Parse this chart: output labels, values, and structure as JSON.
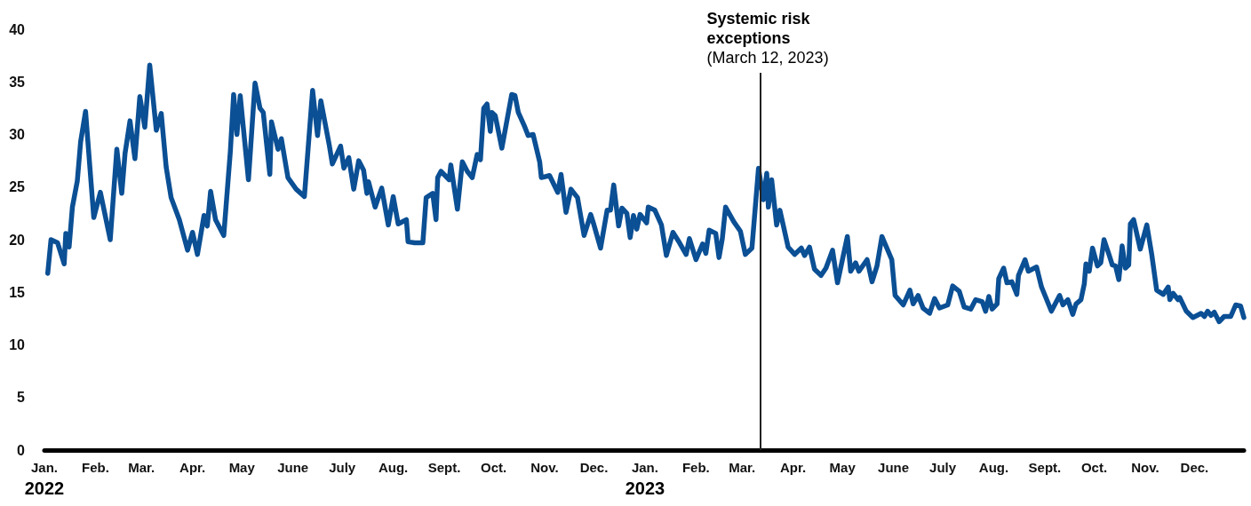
{
  "chart_data": {
    "type": "line",
    "x": [
      "2022-01-03",
      "2022-01-05",
      "2022-01-09",
      "2022-01-13",
      "2022-01-14",
      "2022-01-16",
      "2022-01-18",
      "2022-01-21",
      "2022-01-23",
      "2022-01-26",
      "2022-01-31",
      "2022-02-04",
      "2022-02-10",
      "2022-02-14",
      "2022-02-17",
      "2022-02-19",
      "2022-02-22",
      "2022-02-25",
      "2022-02-28",
      "2022-03-03",
      "2022-03-06",
      "2022-03-10",
      "2022-03-13",
      "2022-03-16",
      "2022-03-19",
      "2022-03-24",
      "2022-03-29",
      "2022-04-01",
      "2022-04-04",
      "2022-04-08",
      "2022-04-10",
      "2022-04-12",
      "2022-04-15",
      "2022-04-20",
      "2022-04-24",
      "2022-04-26",
      "2022-04-28",
      "2022-04-30",
      "2022-05-05",
      "2022-05-09",
      "2022-05-12",
      "2022-05-14",
      "2022-05-18",
      "2022-05-19",
      "2022-05-23",
      "2022-05-25",
      "2022-05-29",
      "2022-06-03",
      "2022-06-08",
      "2022-06-13",
      "2022-06-16",
      "2022-06-18",
      "2022-06-23",
      "2022-06-25",
      "2022-06-30",
      "2022-07-02",
      "2022-07-05",
      "2022-07-08",
      "2022-07-11",
      "2022-07-14",
      "2022-07-16",
      "2022-07-17",
      "2022-07-21",
      "2022-07-25",
      "2022-07-29",
      "2022-08-01",
      "2022-08-04",
      "2022-08-09",
      "2022-08-10",
      "2022-08-14",
      "2022-08-19",
      "2022-08-21",
      "2022-08-25",
      "2022-08-27",
      "2022-08-28",
      "2022-08-30",
      "2022-09-04",
      "2022-09-05",
      "2022-09-09",
      "2022-09-12",
      "2022-09-15",
      "2022-09-18",
      "2022-09-21",
      "2022-09-23",
      "2022-09-25",
      "2022-09-27",
      "2022-09-29",
      "2022-09-30",
      "2022-10-02",
      "2022-10-06",
      "2022-10-12",
      "2022-10-14",
      "2022-10-16",
      "2022-10-20",
      "2022-10-22",
      "2022-10-25",
      "2022-10-29",
      "2022-10-30",
      "2022-11-04",
      "2022-11-09",
      "2022-11-11",
      "2022-11-14",
      "2022-11-17",
      "2022-11-21",
      "2022-11-25",
      "2022-11-29",
      "2022-12-01",
      "2022-12-05",
      "2022-12-09",
      "2022-12-11",
      "2022-12-13",
      "2022-12-16",
      "2022-12-18",
      "2022-12-21",
      "2022-12-23",
      "2022-12-25",
      "2022-12-27",
      "2022-12-29",
      "2023-01-02",
      "2023-01-03",
      "2023-01-07",
      "2023-01-09",
      "2023-01-11",
      "2023-01-14",
      "2023-01-18",
      "2023-01-22",
      "2023-01-26",
      "2023-01-28",
      "2023-02-01",
      "2023-02-05",
      "2023-02-07",
      "2023-02-09",
      "2023-02-13",
      "2023-02-15",
      "2023-02-17",
      "2023-02-19",
      "2023-02-24",
      "2023-02-28",
      "2023-03-03",
      "2023-03-07",
      "2023-03-11",
      "2023-03-14",
      "2023-03-16",
      "2023-03-17",
      "2023-03-19",
      "2023-03-22",
      "2023-03-24",
      "2023-03-29",
      "2023-04-02",
      "2023-04-06",
      "2023-04-08",
      "2023-04-11",
      "2023-04-14",
      "2023-04-18",
      "2023-04-21",
      "2023-04-25",
      "2023-04-28",
      "2023-05-04",
      "2023-05-06",
      "2023-05-09",
      "2023-05-11",
      "2023-05-16",
      "2023-05-19",
      "2023-05-22",
      "2023-05-25",
      "2023-05-31",
      "2023-06-02",
      "2023-06-07",
      "2023-06-11",
      "2023-06-13",
      "2023-06-16",
      "2023-06-19",
      "2023-06-23",
      "2023-06-26",
      "2023-06-29",
      "2023-07-04",
      "2023-07-07",
      "2023-07-11",
      "2023-07-14",
      "2023-07-18",
      "2023-07-21",
      "2023-07-25",
      "2023-07-27",
      "2023-07-29",
      "2023-07-31",
      "2023-08-03",
      "2023-08-04",
      "2023-08-07",
      "2023-08-09",
      "2023-08-12",
      "2023-08-15",
      "2023-08-16",
      "2023-08-20",
      "2023-08-22",
      "2023-08-27",
      "2023-08-30",
      "2023-09-05",
      "2023-09-10",
      "2023-09-12",
      "2023-09-15",
      "2023-09-18",
      "2023-09-20",
      "2023-09-23",
      "2023-09-25",
      "2023-09-26",
      "2023-09-28",
      "2023-09-30",
      "2023-10-03",
      "2023-10-05",
      "2023-10-07",
      "2023-10-10",
      "2023-10-12",
      "2023-10-14",
      "2023-10-16",
      "2023-10-18",
      "2023-10-20",
      "2023-10-22",
      "2023-10-23",
      "2023-10-25",
      "2023-10-29",
      "2023-11-02",
      "2023-11-05",
      "2023-11-08",
      "2023-11-12",
      "2023-11-15",
      "2023-11-16",
      "2023-11-18",
      "2023-11-21",
      "2023-11-22",
      "2023-11-26",
      "2023-11-30",
      "2023-12-05",
      "2023-12-07",
      "2023-12-09",
      "2023-12-11",
      "2023-12-13",
      "2023-12-16",
      "2023-12-19",
      "2023-12-23",
      "2023-12-26",
      "2023-12-29",
      "2023-12-31"
    ],
    "series": [
      {
        "color": "#0b4f94",
        "values": [
          16.8,
          20.0,
          19.7,
          17.7,
          20.6,
          19.3,
          23.1,
          25.6,
          29.3,
          32.2,
          22.1,
          24.5,
          20.0,
          28.6,
          24.4,
          28.2,
          31.3,
          27.7,
          33.6,
          30.7,
          36.6,
          30.4,
          32.0,
          26.9,
          24.0,
          21.9,
          19.0,
          20.7,
          18.6,
          22.3,
          21.3,
          24.6,
          21.9,
          20.4,
          28.4,
          33.8,
          30.0,
          33.7,
          25.7,
          34.9,
          32.5,
          32.1,
          26.2,
          31.2,
          28.6,
          29.6,
          25.9,
          24.8,
          24.1,
          34.2,
          29.9,
          33.2,
          29.1,
          27.2,
          28.9,
          26.8,
          27.8,
          24.8,
          27.5,
          26.6,
          24.4,
          25.5,
          23.1,
          24.9,
          21.4,
          24.1,
          21.5,
          21.9,
          19.8,
          19.7,
          19.7,
          24.0,
          24.4,
          21.9,
          25.9,
          26.5,
          25.7,
          27.1,
          22.9,
          27.4,
          26.5,
          25.9,
          28.1,
          27.6,
          32.5,
          32.9,
          30.3,
          32.1,
          31.8,
          28.7,
          33.8,
          33.7,
          32.1,
          30.7,
          29.9,
          30.0,
          27.4,
          25.9,
          26.1,
          24.5,
          26.2,
          22.6,
          24.8,
          24.0,
          20.4,
          22.4,
          21.4,
          19.2,
          22.8,
          22.8,
          25.2,
          21.3,
          23.0,
          22.5,
          20.2,
          22.3,
          21.0,
          22.4,
          21.6,
          23.1,
          22.8,
          22.1,
          21.4,
          18.5,
          20.7,
          19.7,
          18.6,
          20.1,
          18.1,
          19.6,
          18.7,
          20.9,
          20.6,
          18.3,
          20.1,
          23.1,
          21.7,
          20.8,
          18.6,
          19.2,
          26.8,
          23.8,
          26.3,
          23.1,
          25.7,
          21.4,
          22.8,
          19.3,
          18.6,
          19.2,
          18.5,
          19.3,
          17.2,
          16.6,
          17.3,
          19.0,
          15.9,
          20.3,
          17.0,
          17.8,
          17.0,
          18.1,
          16.0,
          17.5,
          20.3,
          18.1,
          14.7,
          13.8,
          15.2,
          13.9,
          14.7,
          13.5,
          13.0,
          14.4,
          13.5,
          13.8,
          15.6,
          15.1,
          13.6,
          13.4,
          14.3,
          14.1,
          13.2,
          14.6,
          13.4,
          13.9,
          16.3,
          17.3,
          15.9,
          16.0,
          14.8,
          16.6,
          18.1,
          17.0,
          17.4,
          15.5,
          13.2,
          14.7,
          13.8,
          14.3,
          12.9,
          13.9,
          14.3,
          15.8,
          17.7,
          17.0,
          19.2,
          17.5,
          17.8,
          20.0,
          18.6,
          17.6,
          17.5,
          16.2,
          19.4,
          17.3,
          17.6,
          21.5,
          21.9,
          19.1,
          21.4,
          18.6,
          15.2,
          14.8,
          15.5,
          14.3,
          14.9,
          14.3,
          14.5,
          13.2,
          12.6,
          13.0,
          12.7,
          13.2,
          12.8,
          13.1,
          12.2,
          12.7,
          12.7,
          13.8,
          13.7,
          12.6
        ]
      }
    ],
    "xlim": [
      "2022-01-01",
      "2023-12-31"
    ],
    "xticks": [
      {
        "value": "2022-01-01",
        "label": "Jan.\n2022"
      },
      {
        "value": "2022-02-01",
        "label": "Feb."
      },
      {
        "value": "2022-03-01",
        "label": "Mar."
      },
      {
        "value": "2022-04-01",
        "label": "Apr."
      },
      {
        "value": "2022-05-01",
        "label": "May"
      },
      {
        "value": "2022-06-01",
        "label": "June"
      },
      {
        "value": "2022-07-01",
        "label": "July"
      },
      {
        "value": "2022-08-01",
        "label": "Aug."
      },
      {
        "value": "2022-09-01",
        "label": "Sept."
      },
      {
        "value": "2022-10-01",
        "label": "Oct."
      },
      {
        "value": "2022-11-01",
        "label": "Nov."
      },
      {
        "value": "2022-12-01",
        "label": "Dec."
      },
      {
        "value": "2023-01-01",
        "label": "Jan.\n2023"
      },
      {
        "value": "2023-02-01",
        "label": "Feb."
      },
      {
        "value": "2023-03-01",
        "label": "Mar."
      },
      {
        "value": "2023-04-01",
        "label": "Apr."
      },
      {
        "value": "2023-05-01",
        "label": "May"
      },
      {
        "value": "2023-06-01",
        "label": "June"
      },
      {
        "value": "2023-07-01",
        "label": "July"
      },
      {
        "value": "2023-08-01",
        "label": "Aug."
      },
      {
        "value": "2023-09-01",
        "label": "Sept."
      },
      {
        "value": "2023-10-01",
        "label": "Oct."
      },
      {
        "value": "2023-11-01",
        "label": "Nov."
      },
      {
        "value": "2023-12-01",
        "label": "Dec."
      }
    ],
    "ylim": [
      0,
      40
    ],
    "yticks": [
      0,
      5,
      10,
      15,
      20,
      25,
      30,
      35,
      40
    ],
    "grid": false,
    "marker": "none",
    "line_style": "solid",
    "ref_lines": [
      {
        "axis": "x",
        "value": "2023-03-12",
        "label": "Systemic risk\nexceptions\n(March 12, 2023)",
        "color": "#222222"
      }
    ]
  }
}
